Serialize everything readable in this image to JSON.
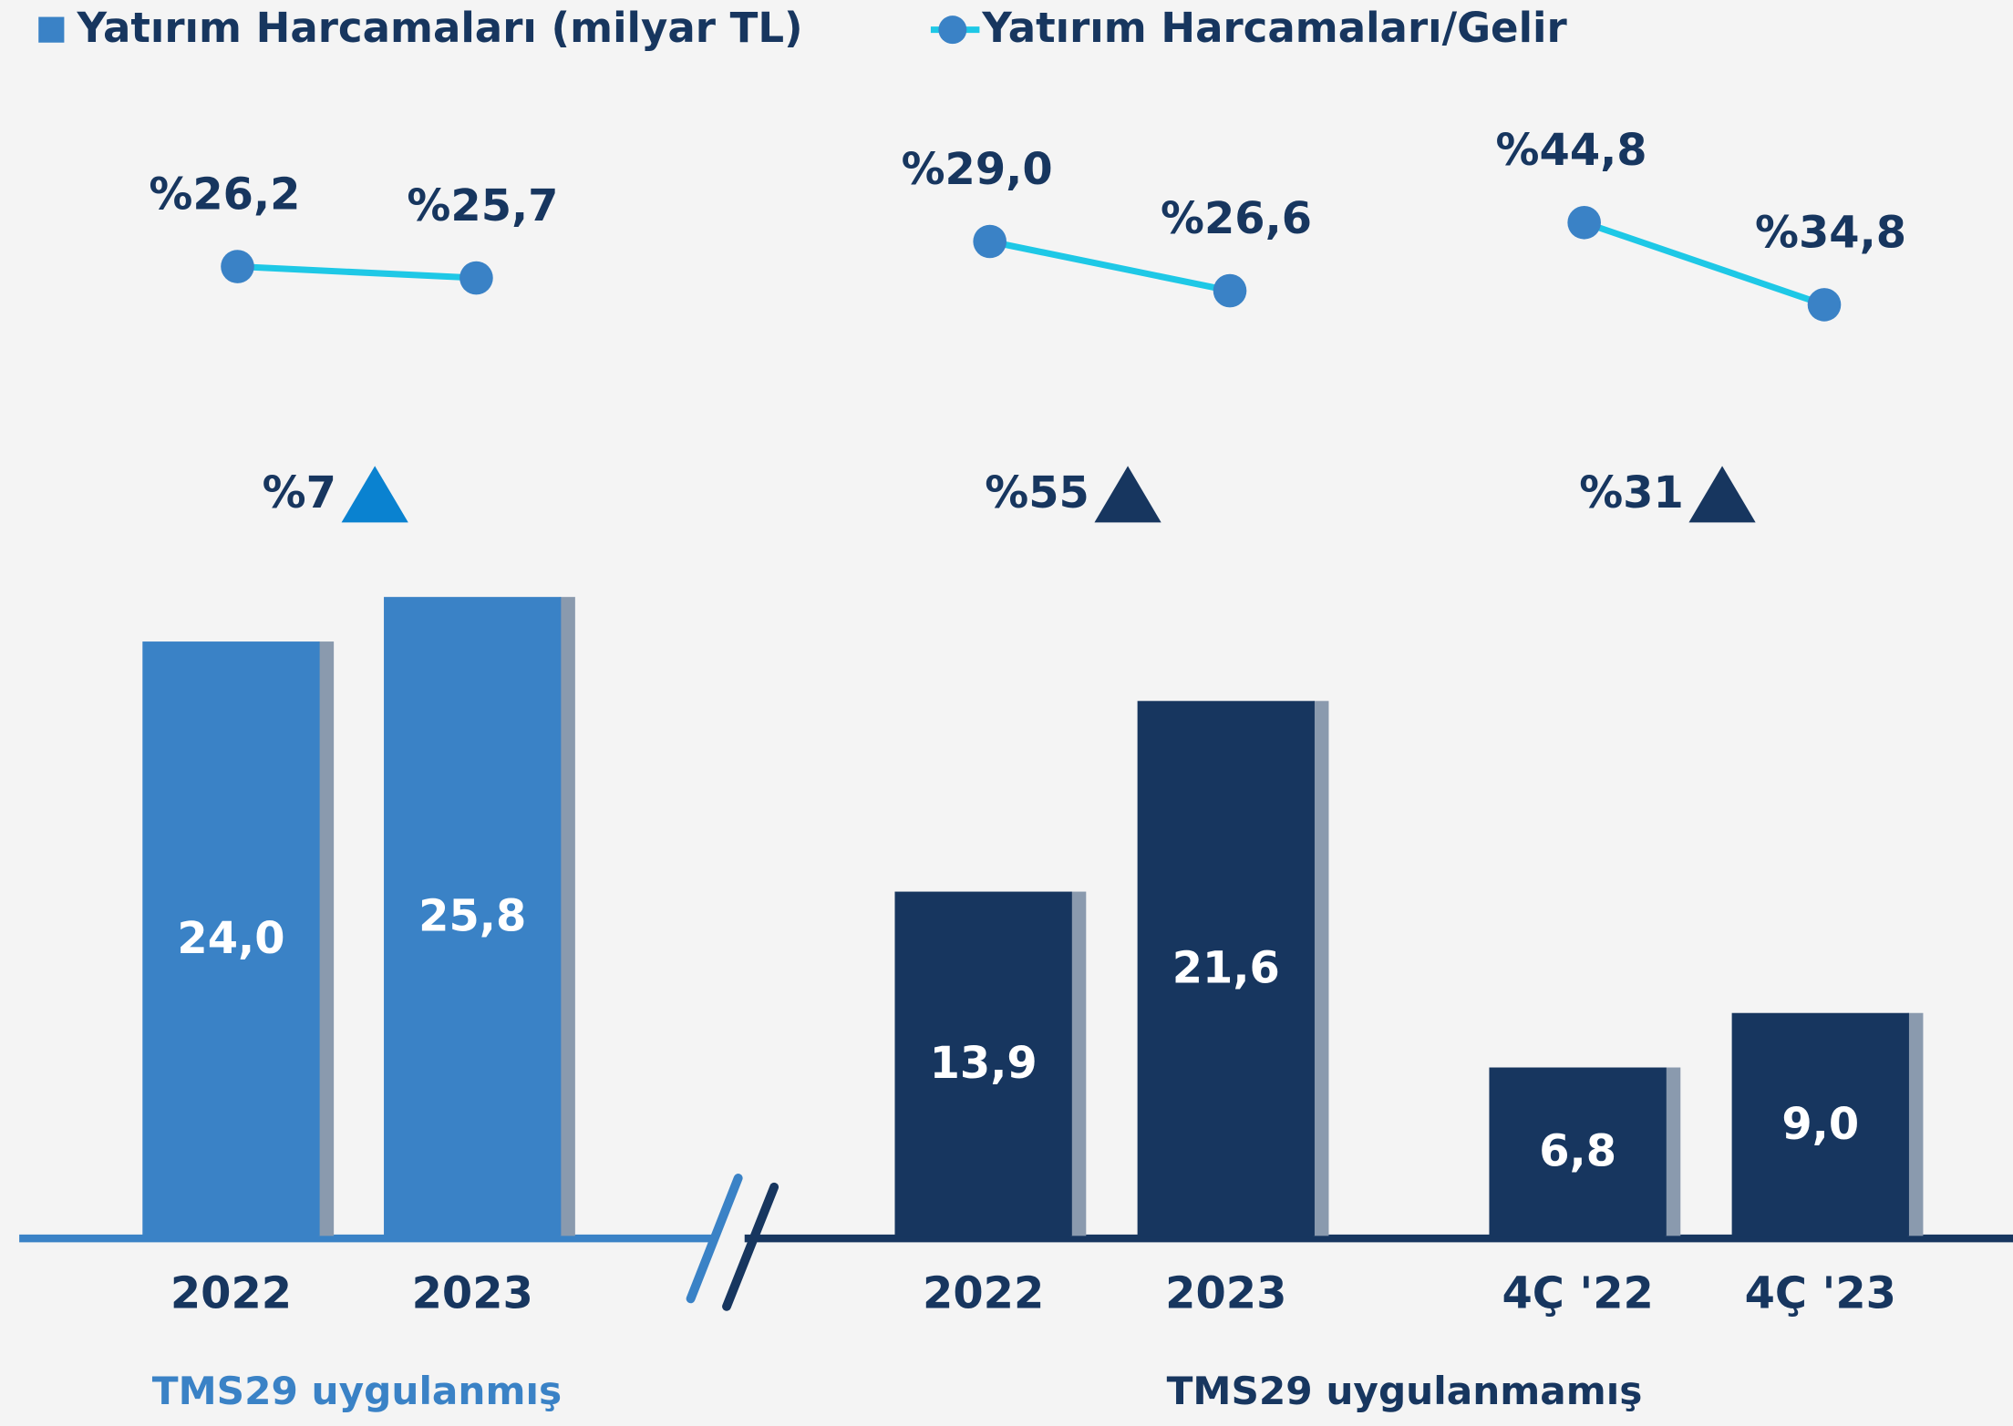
{
  "chart_data": {
    "type": "bar",
    "legend": [
      {
        "name": "Yatırım Harcamaları (milyar TL)",
        "color": "#3a82c6",
        "shape": "square"
      },
      {
        "name": "Yatırım Harcamaları/Gelir",
        "color": "#1ec8e6",
        "shape": "line"
      }
    ],
    "ylim": [
      0,
      30
    ],
    "line_color": "#1ec8e6",
    "marker_color": "#3a82c6",
    "panels": [
      {
        "color": "#3a82c6",
        "change_color": "#0a82d0",
        "categories": [
          "2022",
          "2023"
        ],
        "bars": [
          24.0,
          25.8
        ],
        "bar_labels": [
          "24,0",
          "25,8"
        ],
        "ratios": [
          26.2,
          25.7
        ],
        "ratio_labels": [
          "%26,2",
          "%25,7"
        ],
        "y2lim": [
          21,
          30
        ],
        "change": 7,
        "change_label": "%7"
      },
      {
        "color": "#17365f",
        "change_color": "#17365f",
        "categories": [
          "2022",
          "2023"
        ],
        "bars": [
          13.9,
          21.6
        ],
        "bar_labels": [
          "13,9",
          "21,6"
        ],
        "ratios": [
          29.0,
          26.6
        ],
        "ratio_labels": [
          "%29,0",
          "%26,6"
        ],
        "y2lim": [
          22,
          32
        ],
        "change": 55,
        "change_label": "%55"
      },
      {
        "color": "#17365f",
        "change_color": "#17365f",
        "categories": [
          "4Ç '22",
          "4Ç '23"
        ],
        "bars": [
          6.8,
          9.0
        ],
        "bar_labels": [
          "6,8",
          "9,0"
        ],
        "ratios": [
          44.8,
          34.8
        ],
        "ratio_labels": [
          "%44,8",
          "%34,8"
        ],
        "y2lim": [
          25,
          50
        ],
        "change": 31,
        "change_label": "%31"
      }
    ],
    "sections": [
      {
        "label": "TMS29 uygulanmış",
        "color": "#3a82c6"
      },
      {
        "label": "TMS29 uygulanmamış",
        "color": "#17365f"
      }
    ]
  }
}
